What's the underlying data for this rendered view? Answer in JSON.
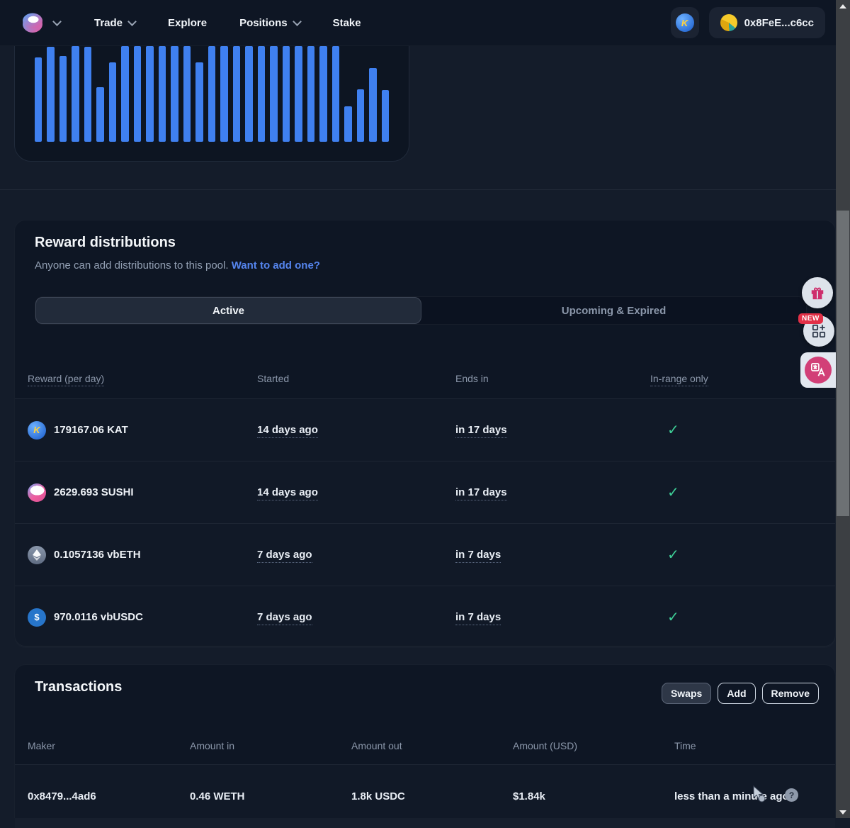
{
  "nav": {
    "items": [
      {
        "label": "Trade",
        "chevron": true
      },
      {
        "label": "Explore",
        "chevron": false
      },
      {
        "label": "Positions",
        "chevron": true
      },
      {
        "label": "Stake",
        "chevron": false
      }
    ],
    "wallet_address": "0x8FeE...c6cc"
  },
  "chart_data": {
    "type": "bar",
    "title": "",
    "xlabel": "",
    "ylabel": "",
    "note": "daily volume bars, axes cropped out of view; values are relative heights in percent of tallest bar",
    "bar_color": "#3f80f0",
    "values": [
      88,
      99,
      90,
      100,
      99,
      57,
      83,
      100,
      100,
      100,
      100,
      100,
      100,
      83,
      100,
      100,
      100,
      100,
      100,
      100,
      100,
      100,
      100,
      100,
      100,
      37,
      55,
      77,
      54
    ]
  },
  "rewards": {
    "title": "Reward distributions",
    "subtitle": "Anyone can add distributions to this pool.",
    "link_label": "Want to add one?",
    "tabs": [
      {
        "label": "Active",
        "selected": true
      },
      {
        "label": "Upcoming & Expired",
        "selected": false
      }
    ],
    "columns": [
      "Reward (per day)",
      "Started",
      "Ends in",
      "In-range only"
    ],
    "rows": [
      {
        "token": "KAT",
        "amount": "179167.06 KAT",
        "started": "14 days ago",
        "ends": "in 17 days",
        "in_range": true
      },
      {
        "token": "SUSHI",
        "amount": "2629.693 SUSHI",
        "started": "14 days ago",
        "ends": "in 17 days",
        "in_range": true
      },
      {
        "token": "vbETH",
        "amount": "0.1057136 vbETH",
        "started": "7 days ago",
        "ends": "in 7 days",
        "in_range": true
      },
      {
        "token": "vbUSDC",
        "amount": "970.0116 vbUSDC",
        "started": "7 days ago",
        "ends": "in 7 days",
        "in_range": true
      }
    ]
  },
  "transactions": {
    "title": "Transactions",
    "filters": [
      {
        "label": "Swaps",
        "selected": true
      },
      {
        "label": "Add",
        "selected": false
      },
      {
        "label": "Remove",
        "selected": false
      }
    ],
    "columns": [
      "Maker",
      "Amount in",
      "Amount out",
      "Amount (USD)",
      "Time"
    ],
    "rows": [
      {
        "maker": "0x8479...4ad6",
        "amount_in": "0.46 WETH",
        "amount_out": "1.8k USDC",
        "amount_usd": "$1.84k",
        "time": "less than a minute ago"
      }
    ]
  },
  "fabs": {
    "new_badge": "NEW"
  },
  "icons": {
    "check": "✓",
    "question": "?",
    "kat_letter": "K",
    "usdc_symbol": "$"
  },
  "colors": {
    "accent_blue": "#3f80f0",
    "link_blue": "#5585ee",
    "check_green": "#3ecf97",
    "badge_red": "#e23047",
    "card_bg": "#0e1624",
    "page_bg": "#141c2a"
  }
}
